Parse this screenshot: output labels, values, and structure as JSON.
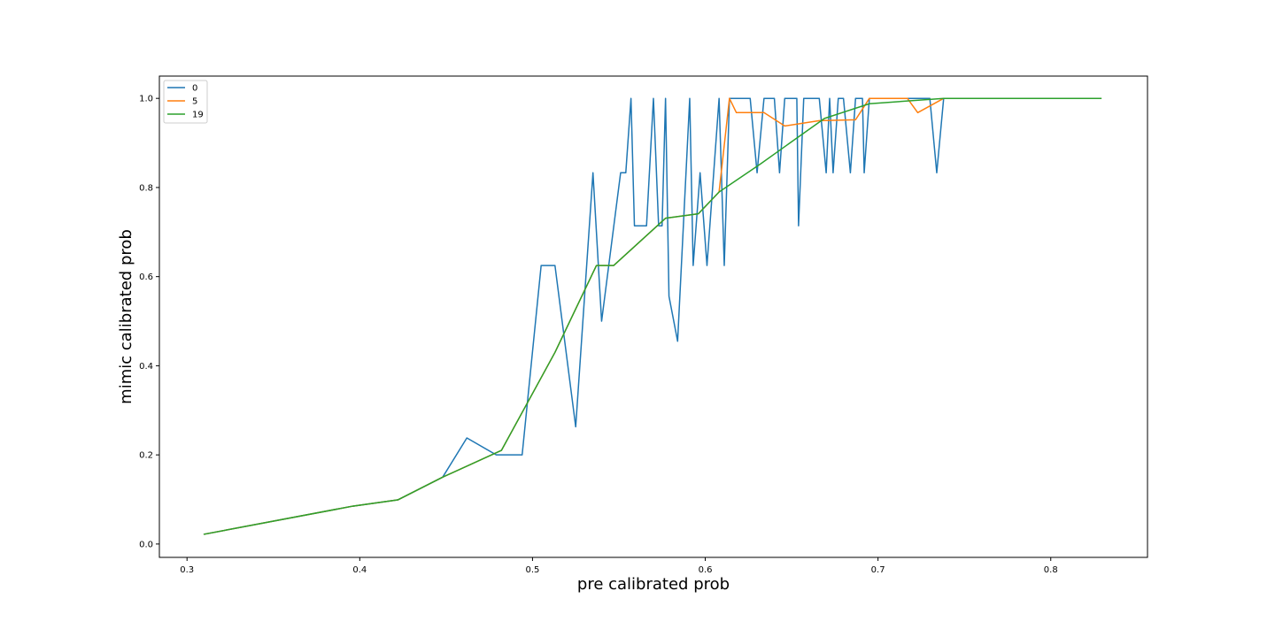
{
  "chart_data": {
    "type": "line",
    "title": "",
    "xlabel": "pre calibrated prob",
    "ylabel": "mimic calibrated prob",
    "xlim": [
      0.284,
      0.856
    ],
    "ylim": [
      -0.03,
      1.05
    ],
    "xticks": [
      "0.3",
      "0.4",
      "0.5",
      "0.6",
      "0.7",
      "0.8"
    ],
    "yticks": [
      "0.0",
      "0.2",
      "0.4",
      "0.6",
      "0.8",
      "1.0"
    ],
    "grid": false,
    "legend_position": "top-left",
    "series": [
      {
        "name": "0",
        "color": "#1f77b4",
        "points": [
          [
            0.31,
            0.022
          ],
          [
            0.396,
            0.085
          ],
          [
            0.422,
            0.099
          ],
          [
            0.448,
            0.15
          ],
          [
            0.462,
            0.238
          ],
          [
            0.479,
            0.2
          ],
          [
            0.494,
            0.2
          ],
          [
            0.505,
            0.625
          ],
          [
            0.513,
            0.625
          ],
          [
            0.525,
            0.263
          ],
          [
            0.535,
            0.833
          ],
          [
            0.54,
            0.5
          ],
          [
            0.551,
            0.833
          ],
          [
            0.554,
            0.833
          ],
          [
            0.557,
            1.0
          ],
          [
            0.559,
            0.714
          ],
          [
            0.566,
            0.714
          ],
          [
            0.57,
            1.0
          ],
          [
            0.573,
            0.714
          ],
          [
            0.575,
            0.714
          ],
          [
            0.577,
            1.0
          ],
          [
            0.579,
            0.556
          ],
          [
            0.584,
            0.455
          ],
          [
            0.591,
            1.0
          ],
          [
            0.593,
            0.625
          ],
          [
            0.597,
            0.833
          ],
          [
            0.601,
            0.625
          ],
          [
            0.608,
            1.0
          ],
          [
            0.611,
            0.625
          ],
          [
            0.614,
            1.0
          ],
          [
            0.626,
            1.0
          ],
          [
            0.63,
            0.833
          ],
          [
            0.634,
            1.0
          ],
          [
            0.64,
            1.0
          ],
          [
            0.643,
            0.833
          ],
          [
            0.646,
            1.0
          ],
          [
            0.65,
            1.0
          ],
          [
            0.653,
            1.0
          ],
          [
            0.654,
            0.714
          ],
          [
            0.657,
            1.0
          ],
          [
            0.666,
            1.0
          ],
          [
            0.67,
            0.833
          ],
          [
            0.672,
            1.0
          ],
          [
            0.674,
            0.833
          ],
          [
            0.677,
            1.0
          ],
          [
            0.68,
            1.0
          ],
          [
            0.684,
            0.833
          ],
          [
            0.687,
            1.0
          ],
          [
            0.691,
            1.0
          ],
          [
            0.692,
            0.833
          ],
          [
            0.695,
            1.0
          ],
          [
            0.73,
            1.0
          ],
          [
            0.734,
            0.833
          ],
          [
            0.738,
            1.0
          ],
          [
            0.829,
            1.0
          ]
        ]
      },
      {
        "name": "5",
        "color": "#ff7f0e",
        "points": [
          [
            0.31,
            0.022
          ],
          [
            0.396,
            0.085
          ],
          [
            0.422,
            0.099
          ],
          [
            0.448,
            0.15
          ],
          [
            0.482,
            0.21
          ],
          [
            0.513,
            0.43
          ],
          [
            0.537,
            0.625
          ],
          [
            0.547,
            0.625
          ],
          [
            0.577,
            0.731
          ],
          [
            0.596,
            0.741
          ],
          [
            0.608,
            0.79
          ],
          [
            0.614,
            1.0
          ],
          [
            0.618,
            0.968
          ],
          [
            0.634,
            0.968
          ],
          [
            0.646,
            0.938
          ],
          [
            0.666,
            0.95
          ],
          [
            0.687,
            0.952
          ],
          [
            0.695,
            1.0
          ],
          [
            0.717,
            1.0
          ],
          [
            0.723,
            0.968
          ],
          [
            0.738,
            1.0
          ],
          [
            0.829,
            1.0
          ]
        ]
      },
      {
        "name": "19",
        "color": "#2ca02c",
        "points": [
          [
            0.31,
            0.022
          ],
          [
            0.396,
            0.085
          ],
          [
            0.422,
            0.099
          ],
          [
            0.448,
            0.15
          ],
          [
            0.482,
            0.21
          ],
          [
            0.513,
            0.43
          ],
          [
            0.537,
            0.625
          ],
          [
            0.547,
            0.625
          ],
          [
            0.577,
            0.731
          ],
          [
            0.596,
            0.741
          ],
          [
            0.608,
            0.79
          ],
          [
            0.632,
            0.853
          ],
          [
            0.669,
            0.955
          ],
          [
            0.695,
            0.988
          ],
          [
            0.738,
            1.0
          ],
          [
            0.829,
            1.0
          ]
        ]
      }
    ]
  }
}
